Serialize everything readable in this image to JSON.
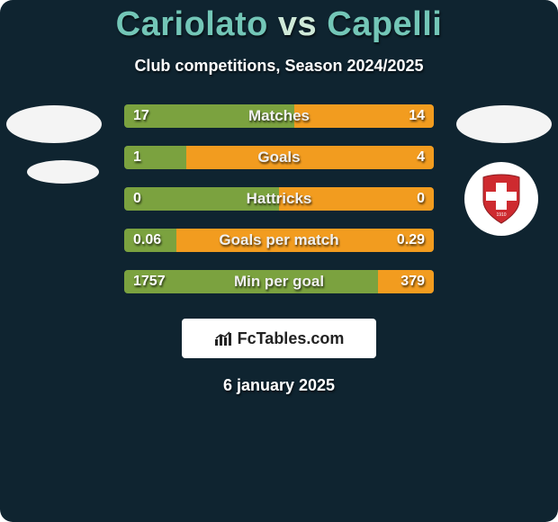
{
  "title": {
    "left": "Cariolato",
    "vs": "vs",
    "right": "Capelli"
  },
  "subtitle": "Club competitions, Season 2024/2025",
  "footer_date": "6 january 2025",
  "brand": {
    "text": "FcTables.com"
  },
  "colors": {
    "background": "#0f2430",
    "title_left": "#73c6b7",
    "title_vs": "#cfe9d8",
    "title_right": "#73c6b7",
    "subtitle": "#ffffff",
    "bar_left": "#7ba23f",
    "bar_right": "#f29c1f",
    "row_track": "#1b3a48",
    "avatar_fill": "#f4f4f4",
    "badge_bg": "#ffffff",
    "badge_red": "#ce2a2f",
    "brand_bg": "#ffffff",
    "brand_text": "#222222"
  },
  "rows": [
    {
      "label": "Matches",
      "left_val": "17",
      "right_val": "14",
      "left_pct": 55,
      "right_pct": 45
    },
    {
      "label": "Goals",
      "left_val": "1",
      "right_val": "4",
      "left_pct": 20,
      "right_pct": 80
    },
    {
      "label": "Hattricks",
      "left_val": "0",
      "right_val": "0",
      "left_pct": 50,
      "right_pct": 50
    },
    {
      "label": "Goals per match",
      "left_val": "0.06",
      "right_val": "0.29",
      "left_pct": 17,
      "right_pct": 83
    },
    {
      "label": "Min per goal",
      "left_val": "1757",
      "right_val": "379",
      "left_pct": 82,
      "right_pct": 18
    }
  ],
  "avatars": {
    "left": {
      "fill": "#f4f4f4"
    },
    "right": {
      "fill": "#f4f4f4"
    },
    "left2": {
      "fill": "#f2f2f2"
    }
  }
}
